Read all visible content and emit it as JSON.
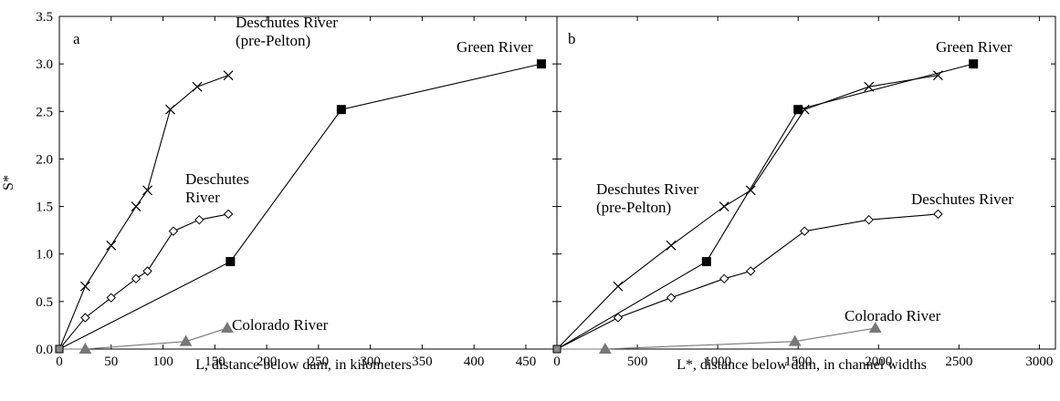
{
  "chart_data": [
    {
      "type": "line",
      "panel_label": "a",
      "xlabel": "L, distance below dam, in kilometers",
      "ylabel": "S*",
      "xlim": [
        0,
        480
      ],
      "ylim": [
        0,
        3.5
      ],
      "x_ticks": [
        0,
        50,
        100,
        150,
        200,
        250,
        300,
        350,
        400,
        450
      ],
      "y_ticks": [
        0.0,
        0.5,
        1.0,
        1.5,
        2.0,
        2.5,
        3.0,
        3.5
      ],
      "x_tick_labels": [
        "0",
        "50",
        "100",
        "150",
        "200",
        "250",
        "300",
        "350",
        "400",
        "450"
      ],
      "y_tick_labels": [
        "0.0",
        "0.5",
        "1.0",
        "1.5",
        "2.0",
        "2.5",
        "3.0",
        "3.5"
      ],
      "grid": false,
      "series": [
        {
          "name": "Deschutes River (pre-Pelton)",
          "label_lines": [
            "Deschutes River",
            "(pre-Pelton)"
          ],
          "marker": "x",
          "color": "#000000",
          "points": [
            [
              0,
              0
            ],
            [
              25,
              0.66
            ],
            [
              50,
              1.09
            ],
            [
              74,
              1.5
            ],
            [
              85,
              1.67
            ],
            [
              107,
              2.52
            ],
            [
              133,
              2.76
            ],
            [
              163,
              2.88
            ]
          ]
        },
        {
          "name": "Deschutes River",
          "label_lines": [
            "Deschutes",
            "River"
          ],
          "marker": "diamond",
          "color": "#000000",
          "points": [
            [
              0,
              0
            ],
            [
              25,
              0.33
            ],
            [
              50,
              0.54
            ],
            [
              74,
              0.74
            ],
            [
              85,
              0.82
            ],
            [
              110,
              1.24
            ],
            [
              135,
              1.36
            ],
            [
              163,
              1.42
            ]
          ]
        },
        {
          "name": "Green River",
          "label_lines": [
            "Green River"
          ],
          "marker": "square",
          "color": "#000000",
          "points": [
            [
              0,
              0
            ],
            [
              165,
              0.92
            ],
            [
              272,
              2.52
            ],
            [
              465,
              3.0
            ]
          ]
        },
        {
          "name": "Colorado River",
          "label_lines": [
            "Colorado River"
          ],
          "marker": "triangle",
          "color": "#777777",
          "points": [
            [
              0,
              0
            ],
            [
              25,
              0.0
            ],
            [
              122,
              0.08
            ],
            [
              162,
              0.22
            ]
          ]
        }
      ]
    },
    {
      "type": "line",
      "panel_label": "b",
      "xlabel": "L*, distance below dam, in channel widths",
      "ylabel": "",
      "xlim": [
        0,
        3100
      ],
      "ylim": [
        0,
        3.5
      ],
      "x_ticks": [
        0,
        500,
        1000,
        1500,
        2000,
        2500,
        3000
      ],
      "y_ticks": [
        0.0,
        0.5,
        1.0,
        1.5,
        2.0,
        2.5,
        3.0,
        3.5
      ],
      "x_tick_labels": [
        "0",
        "500",
        "1000",
        "1500",
        "2000",
        "2500",
        "3000"
      ],
      "y_tick_labels": [],
      "grid": false,
      "series": [
        {
          "name": "Deschutes River (pre-Pelton)",
          "label_lines": [
            "Deschutes River",
            "(pre-Pelton)"
          ],
          "marker": "x",
          "color": "#000000",
          "points": [
            [
              0,
              0
            ],
            [
              380,
              0.66
            ],
            [
              710,
              1.09
            ],
            [
              1040,
              1.5
            ],
            [
              1205,
              1.67
            ],
            [
              1540,
              2.52
            ],
            [
              1940,
              2.76
            ],
            [
              2370,
              2.88
            ]
          ]
        },
        {
          "name": "Deschutes River",
          "label_lines": [
            "Deschutes River"
          ],
          "marker": "diamond",
          "color": "#000000",
          "points": [
            [
              0,
              0
            ],
            [
              380,
              0.33
            ],
            [
              710,
              0.54
            ],
            [
              1040,
              0.74
            ],
            [
              1205,
              0.82
            ],
            [
              1540,
              1.24
            ],
            [
              1940,
              1.36
            ],
            [
              2370,
              1.42
            ]
          ]
        },
        {
          "name": "Green River",
          "label_lines": [
            "Green River"
          ],
          "marker": "square",
          "color": "#000000",
          "points": [
            [
              0,
              0
            ],
            [
              930,
              0.92
            ],
            [
              1500,
              2.52
            ],
            [
              2590,
              3.0
            ]
          ]
        },
        {
          "name": "Colorado River",
          "label_lines": [
            "Colorado River"
          ],
          "marker": "triangle",
          "color": "#777777",
          "points": [
            [
              0,
              0
            ],
            [
              300,
              0.0
            ],
            [
              1480,
              0.08
            ],
            [
              1980,
              0.22
            ]
          ]
        }
      ]
    }
  ]
}
